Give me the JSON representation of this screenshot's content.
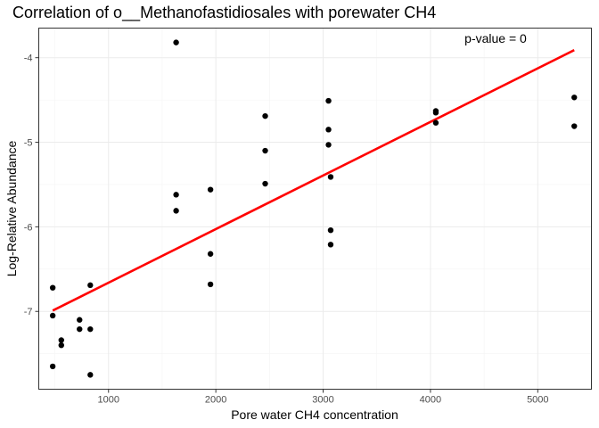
{
  "chart_data": {
    "type": "scatter",
    "title": "Correlation of o__Methanofastidiosales with porewater CH4",
    "xlabel": "Pore water CH4 concentration",
    "ylabel": "Log-Relative Abundance",
    "annotation": "p-value = 0",
    "xlim": [
      350,
      5500
    ],
    "ylim": [
      -7.92,
      -3.65
    ],
    "x_ticks": [
      1000,
      2000,
      3000,
      4000,
      5000
    ],
    "y_ticks": [
      -7,
      -6,
      -5,
      -4
    ],
    "grid": true,
    "points": [
      {
        "x": 1630,
        "y": -3.82
      },
      {
        "x": 480,
        "y": -6.72
      },
      {
        "x": 480,
        "y": -7.05
      },
      {
        "x": 480,
        "y": -7.65
      },
      {
        "x": 560,
        "y": -7.34
      },
      {
        "x": 560,
        "y": -7.4
      },
      {
        "x": 730,
        "y": -7.1
      },
      {
        "x": 730,
        "y": -7.21
      },
      {
        "x": 830,
        "y": -6.69
      },
      {
        "x": 830,
        "y": -7.21
      },
      {
        "x": 830,
        "y": -7.75
      },
      {
        "x": 1630,
        "y": -5.62
      },
      {
        "x": 1630,
        "y": -5.81
      },
      {
        "x": 1950,
        "y": -5.56
      },
      {
        "x": 1950,
        "y": -6.32
      },
      {
        "x": 1950,
        "y": -6.68
      },
      {
        "x": 2460,
        "y": -4.69
      },
      {
        "x": 2460,
        "y": -5.1
      },
      {
        "x": 2460,
        "y": -5.49
      },
      {
        "x": 3050,
        "y": -4.51
      },
      {
        "x": 3050,
        "y": -4.85
      },
      {
        "x": 3050,
        "y": -5.03
      },
      {
        "x": 3070,
        "y": -5.41
      },
      {
        "x": 3070,
        "y": -6.04
      },
      {
        "x": 3070,
        "y": -6.21
      },
      {
        "x": 4050,
        "y": -4.63
      },
      {
        "x": 4050,
        "y": -4.65
      },
      {
        "x": 4050,
        "y": -4.77
      },
      {
        "x": 5340,
        "y": -4.47
      },
      {
        "x": 5340,
        "y": -4.81
      }
    ],
    "fit_line": {
      "x": [
        480,
        5340
      ],
      "y": [
        -6.99,
        -3.91
      ],
      "color": "#ff0000"
    },
    "point_color": "#000000"
  }
}
